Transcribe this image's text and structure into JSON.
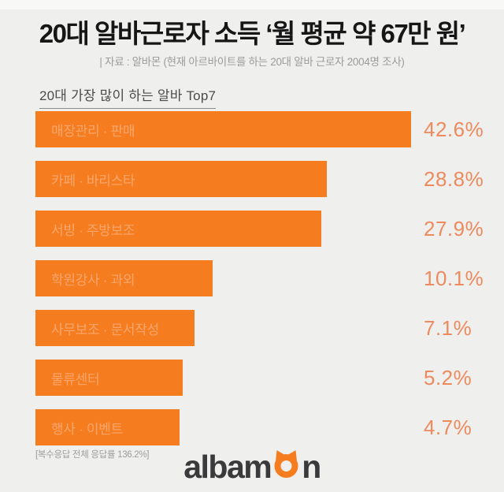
{
  "header": {
    "title": "20대 알바근로자 소득 ‘월 평균 약 67만 원’",
    "source_note": "| 자료 : 알바몬 (현재 아르바이트를 하는 20대 알바 근로자 2004명 조사)"
  },
  "chart_data": {
    "type": "bar",
    "orientation": "horizontal",
    "title": "20대 가장 많이 하는 알바 Top7",
    "categories": [
      "매장관리 · 판매",
      "카페 · 바리스타",
      "서빙 · 주방보조",
      "학원강사 · 과외",
      "사무보조 · 문서작성",
      "물류센터",
      "행사 · 이벤트"
    ],
    "values": [
      42.6,
      28.8,
      27.9,
      10.1,
      7.1,
      5.2,
      4.7
    ],
    "value_labels": [
      "42.6%",
      "28.8%",
      "27.9%",
      "10.1%",
      "7.1%",
      "5.2%",
      "4.7%"
    ],
    "unit": "%",
    "legend": "none",
    "grid": false,
    "bar_color": "#f57d20",
    "bar_label_color": "#f9a66d",
    "value_label_color": "#ed8a5e"
  },
  "footnote": "[복수응답 전체 응답률 136.2%]",
  "logo": {
    "name": "albamon",
    "text_left": "albam",
    "text_right": "n",
    "text_color": "#3a3a3c",
    "icon": "cat-face-icon",
    "icon_color": "#f57d20"
  }
}
